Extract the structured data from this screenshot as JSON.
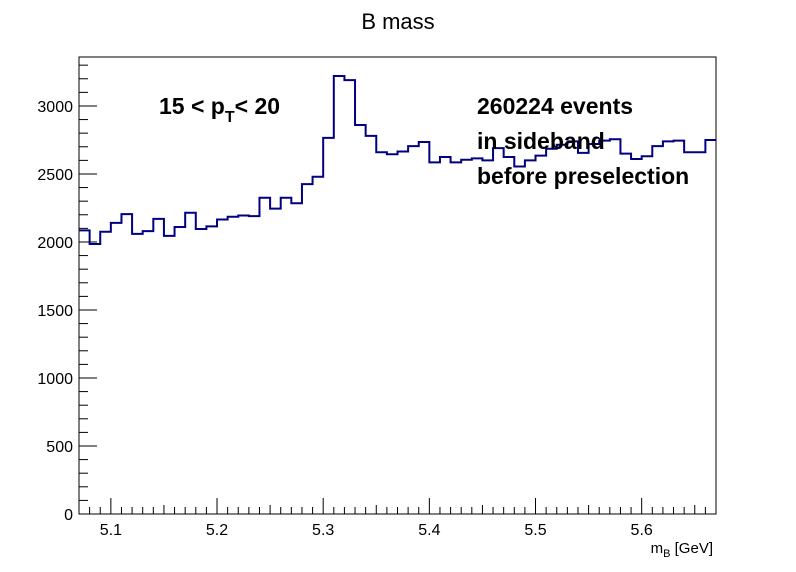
{
  "chart_data": {
    "type": "line",
    "style": "step-histogram",
    "title": "B mass",
    "xlabel_main": "m",
    "xlabel_sub": "B",
    "xlabel_unit": " [GeV]",
    "xlim": [
      5.07,
      5.67
    ],
    "ylim": [
      0,
      3360
    ],
    "bin_width": 0.01,
    "x": [
      5.07,
      5.08,
      5.09,
      5.1,
      5.11,
      5.12,
      5.13,
      5.14,
      5.15,
      5.16,
      5.17,
      5.18,
      5.19,
      5.2,
      5.21,
      5.22,
      5.23,
      5.24,
      5.25,
      5.26,
      5.27,
      5.28,
      5.29,
      5.3,
      5.31,
      5.32,
      5.33,
      5.34,
      5.35,
      5.36,
      5.37,
      5.38,
      5.39,
      5.4,
      5.41,
      5.42,
      5.43,
      5.44,
      5.45,
      5.46,
      5.47,
      5.48,
      5.49,
      5.5,
      5.51,
      5.52,
      5.53,
      5.54,
      5.55,
      5.56,
      5.57,
      5.58,
      5.59,
      5.6,
      5.61,
      5.62,
      5.63,
      5.64,
      5.65,
      5.66
    ],
    "series": [
      {
        "color": "#000080",
        "values": [
          2085,
          1985,
          2075,
          2140,
          2205,
          2060,
          2080,
          2170,
          2045,
          2110,
          2215,
          2095,
          2115,
          2165,
          2185,
          2195,
          2190,
          2325,
          2245,
          2325,
          2285,
          2425,
          2480,
          2765,
          3220,
          3190,
          2860,
          2780,
          2660,
          2645,
          2665,
          2705,
          2735,
          2585,
          2625,
          2585,
          2605,
          2615,
          2600,
          2690,
          2625,
          2555,
          2600,
          2635,
          2685,
          2715,
          2740,
          2655,
          2720,
          2745,
          2755,
          2650,
          2610,
          2630,
          2705,
          2740,
          2745,
          2660,
          2660,
          2750
        ]
      }
    ],
    "x_ticks": [
      {
        "v": 5.1,
        "label": "5.1"
      },
      {
        "v": 5.2,
        "label": "5.2"
      },
      {
        "v": 5.3,
        "label": "5.3"
      },
      {
        "v": 5.4,
        "label": "5.4"
      },
      {
        "v": 5.5,
        "label": "5.5"
      },
      {
        "v": 5.6,
        "label": "5.6"
      }
    ],
    "y_ticks": [
      {
        "v": 0,
        "label": "0"
      },
      {
        "v": 500,
        "label": "500"
      },
      {
        "v": 1000,
        "label": "1000"
      },
      {
        "v": 1500,
        "label": "1500"
      },
      {
        "v": 2000,
        "label": "2000"
      },
      {
        "v": 2500,
        "label": "2500"
      },
      {
        "v": 3000,
        "label": "3000"
      }
    ],
    "annotations": {
      "pt_left": "15 < p",
      "pt_sub": "T",
      "pt_right": "< 20",
      "line1": "260224 events",
      "line2": "in sideband",
      "line3": "before preselection"
    },
    "grid": false,
    "legend": "none"
  }
}
